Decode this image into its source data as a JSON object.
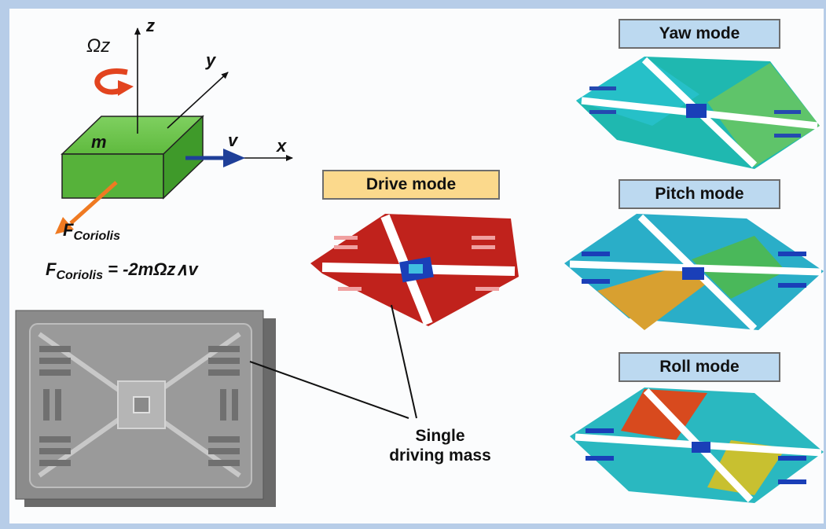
{
  "axes": {
    "z": "z",
    "y": "y",
    "x": "x"
  },
  "rotation_label": "Ωz",
  "mass_label": "m",
  "velocity_label": "v",
  "force_label": {
    "main": "F",
    "sub": "Coriolis"
  },
  "equation": {
    "lhs_main": "F",
    "lhs_sub": "Coriolis",
    "rhs": " = -2mΩz∧v"
  },
  "modes": {
    "drive": "Drive mode",
    "yaw": "Yaw mode",
    "pitch": "Pitch mode",
    "roll": "Roll mode"
  },
  "callout": {
    "line1": "Single",
    "line2": "driving mass"
  },
  "colors": {
    "box": "#5fba3e",
    "rotation_arrow": "#e2441f",
    "velocity_arrow": "#1f3f99",
    "force_arrow": "#ef7a22",
    "drive_box": "#fbd98c",
    "mode_box": "#bcd9f0",
    "background_frame": "#b7cde8"
  }
}
